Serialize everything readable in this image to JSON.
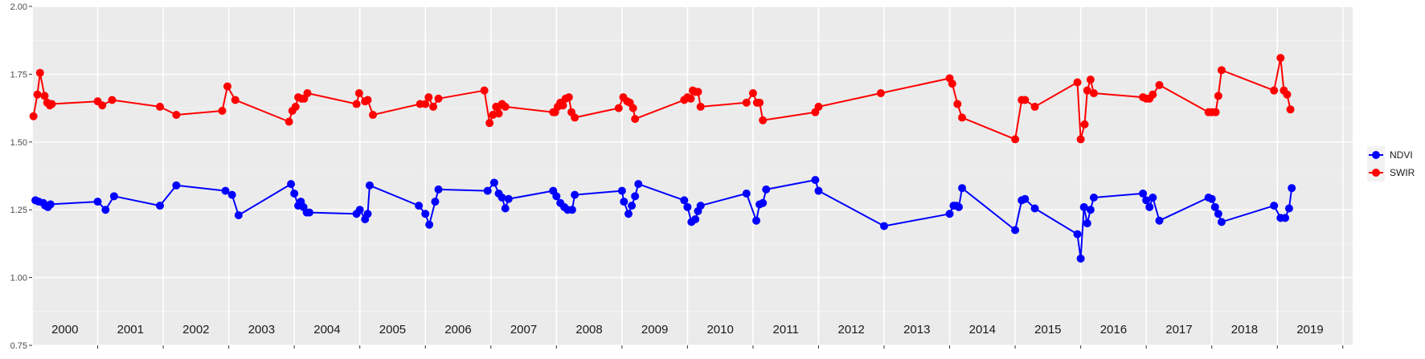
{
  "chart_data": {
    "type": "line",
    "ylim": [
      0.75,
      2.0
    ],
    "y_ticks": [
      "0.75",
      "1.00",
      "1.25",
      "1.50",
      "1.75",
      "2.00"
    ],
    "xlim": [
      2000.0,
      2020.15
    ],
    "years": [
      "2000",
      "2001",
      "2002",
      "2003",
      "2004",
      "2005",
      "2006",
      "2007",
      "2008",
      "2009",
      "2010",
      "2011",
      "2012",
      "2013",
      "2014",
      "2015",
      "2016",
      "2017",
      "2018",
      "2019"
    ],
    "grid": true,
    "legend_position": "right",
    "series": [
      {
        "name": "NDVI",
        "color": "#0000ff",
        "x": [
          2000.05,
          2000.1,
          2000.17,
          2000.2,
          2000.24,
          2000.28,
          2001.0,
          2001.12,
          2001.25,
          2001.95,
          2002.2,
          2002.95,
          2003.05,
          2003.15,
          2003.95,
          2004.0,
          2004.06,
          2004.1,
          2004.14,
          2004.19,
          2004.23,
          2004.95,
          2005.0,
          2005.08,
          2005.12,
          2005.15,
          2005.9,
          2006.0,
          2006.06,
          2006.15,
          2006.2,
          2006.95,
          2007.05,
          2007.12,
          2007.17,
          2007.22,
          2007.27,
          2007.95,
          2008.0,
          2008.06,
          2008.12,
          2008.17,
          2008.24,
          2008.28,
          2009.0,
          2009.03,
          2009.1,
          2009.15,
          2009.2,
          2009.25,
          2009.95,
          2010.0,
          2010.06,
          2010.12,
          2010.16,
          2010.2,
          2010.9,
          2011.05,
          2011.1,
          2011.15,
          2011.2,
          2011.95,
          2012.0,
          2013.0,
          2014.0,
          2014.06,
          2014.1,
          2014.14,
          2014.19,
          2015.0,
          2015.1,
          2015.15,
          2015.3,
          2015.95,
          2016.0,
          2016.05,
          2016.1,
          2016.15,
          2016.2,
          2016.95,
          2017.0,
          2017.05,
          2017.1,
          2017.2,
          2017.95,
          2018.0,
          2018.05,
          2018.1,
          2018.15,
          2018.95,
          2019.05,
          2019.12,
          2019.18,
          2019.22
        ],
        "values": [
          1.285,
          1.28,
          1.275,
          1.265,
          1.26,
          1.27,
          1.28,
          1.25,
          1.3,
          1.265,
          1.34,
          1.32,
          1.305,
          1.23,
          1.345,
          1.31,
          1.265,
          1.28,
          1.26,
          1.24,
          1.24,
          1.235,
          1.25,
          1.215,
          1.235,
          1.34,
          1.265,
          1.235,
          1.195,
          1.28,
          1.325,
          1.32,
          1.35,
          1.31,
          1.295,
          1.255,
          1.29,
          1.32,
          1.3,
          1.275,
          1.26,
          1.25,
          1.25,
          1.305,
          1.32,
          1.28,
          1.235,
          1.265,
          1.3,
          1.345,
          1.285,
          1.26,
          1.205,
          1.215,
          1.245,
          1.265,
          1.31,
          1.21,
          1.27,
          1.275,
          1.325,
          1.36,
          1.32,
          1.19,
          1.235,
          1.265,
          1.265,
          1.26,
          1.33,
          1.175,
          1.285,
          1.29,
          1.255,
          1.16,
          1.07,
          1.26,
          1.2,
          1.25,
          1.295,
          1.31,
          1.285,
          1.26,
          1.295,
          1.21,
          1.295,
          1.29,
          1.26,
          1.235,
          1.205,
          1.265,
          1.22,
          1.22,
          1.255,
          1.33
        ]
      },
      {
        "name": "SWIR",
        "color": "#ff0000",
        "x": [
          2000.02,
          2000.08,
          2000.12,
          2000.19,
          2000.23,
          2000.27,
          2000.3,
          2001.0,
          2001.07,
          2001.22,
          2001.95,
          2002.2,
          2002.9,
          2002.98,
          2003.1,
          2003.92,
          2003.97,
          2004.02,
          2004.06,
          2004.11,
          2004.15,
          2004.2,
          2004.95,
          2004.99,
          2005.08,
          2005.12,
          2005.2,
          2005.92,
          2006.0,
          2006.05,
          2006.12,
          2006.2,
          2006.9,
          2006.98,
          2007.03,
          2007.08,
          2007.12,
          2007.17,
          2007.22,
          2007.95,
          2007.98,
          2008.02,
          2008.06,
          2008.1,
          2008.14,
          2008.19,
          2008.23,
          2008.28,
          2008.95,
          2009.02,
          2009.08,
          2009.12,
          2009.17,
          2009.2,
          2009.95,
          2010.0,
          2010.05,
          2010.08,
          2010.12,
          2010.16,
          2010.2,
          2010.9,
          2011.0,
          2011.06,
          2011.1,
          2011.15,
          2011.95,
          2012.0,
          2012.95,
          2014.0,
          2014.04,
          2014.12,
          2014.19,
          2015.0,
          2015.1,
          2015.15,
          2015.3,
          2015.95,
          2016.0,
          2016.06,
          2016.1,
          2016.15,
          2016.2,
          2016.95,
          2017.0,
          2017.05,
          2017.1,
          2017.2,
          2017.95,
          2018.0,
          2018.06,
          2018.1,
          2018.15,
          2018.95,
          2019.05,
          2019.1,
          2019.15,
          2019.2
        ],
        "values": [
          1.595,
          1.675,
          1.755,
          1.67,
          1.645,
          1.635,
          1.64,
          1.65,
          1.635,
          1.655,
          1.63,
          1.6,
          1.615,
          1.705,
          1.655,
          1.575,
          1.615,
          1.63,
          1.665,
          1.66,
          1.66,
          1.68,
          1.64,
          1.68,
          1.65,
          1.655,
          1.6,
          1.64,
          1.64,
          1.665,
          1.63,
          1.66,
          1.69,
          1.57,
          1.6,
          1.63,
          1.605,
          1.64,
          1.63,
          1.61,
          1.61,
          1.63,
          1.645,
          1.635,
          1.66,
          1.665,
          1.61,
          1.59,
          1.625,
          1.665,
          1.65,
          1.645,
          1.625,
          1.585,
          1.655,
          1.665,
          1.66,
          1.69,
          1.685,
          1.685,
          1.63,
          1.645,
          1.68,
          1.645,
          1.645,
          1.58,
          1.61,
          1.63,
          1.68,
          1.735,
          1.715,
          1.64,
          1.59,
          1.51,
          1.655,
          1.655,
          1.63,
          1.72,
          1.51,
          1.565,
          1.69,
          1.73,
          1.68,
          1.665,
          1.66,
          1.66,
          1.675,
          1.71,
          1.61,
          1.61,
          1.61,
          1.67,
          1.765,
          1.69,
          1.81,
          1.69,
          1.675,
          1.62
        ]
      }
    ]
  }
}
